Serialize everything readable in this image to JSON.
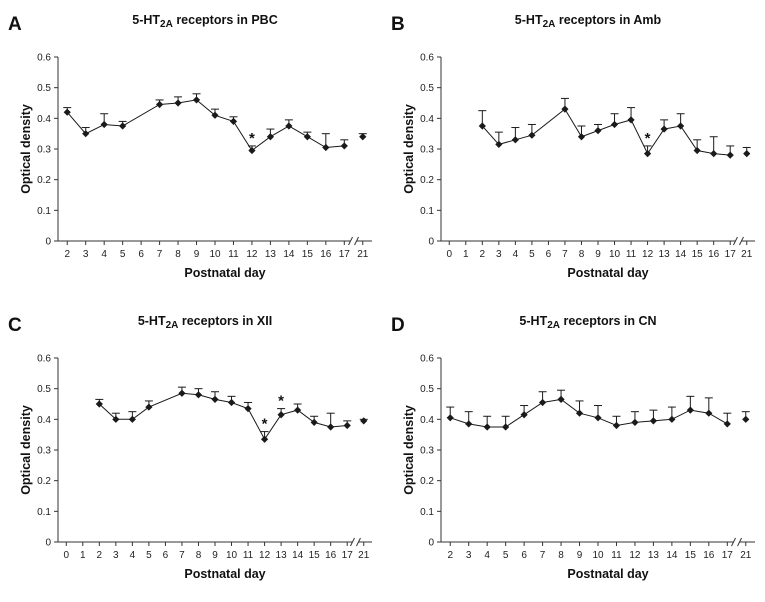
{
  "chart_data": [
    {
      "type": "line",
      "panel_letter": "A",
      "title": "5-HT2A receptors in PBC",
      "title_parts": [
        "5-HT",
        "2A",
        " receptors in PBC"
      ],
      "xlabel": "Postnatal day",
      "ylabel": "Optical density",
      "ylim": [
        0,
        0.6
      ],
      "yticks": [
        "0",
        "0.1",
        "0.2",
        "0.3",
        "0.4",
        "0.5",
        "0.6"
      ],
      "xticks": [
        "2",
        "3",
        "4",
        "5",
        "6",
        "7",
        "8",
        "9",
        "10",
        "11",
        "12",
        "13",
        "14",
        "15",
        "16",
        "17",
        "21"
      ],
      "axis_break_between": [
        17,
        21
      ],
      "x": [
        2,
        3,
        4,
        5,
        7,
        8,
        9,
        10,
        11,
        12,
        13,
        14,
        15,
        16,
        17,
        21
      ],
      "values": [
        0.42,
        0.35,
        0.38,
        0.375,
        0.445,
        0.45,
        0.46,
        0.41,
        0.39,
        0.295,
        0.34,
        0.375,
        0.34,
        0.305,
        0.31,
        0.34
      ],
      "error": [
        0.015,
        0.02,
        0.035,
        0.015,
        0.015,
        0.02,
        0.02,
        0.02,
        0.015,
        0.015,
        0.025,
        0.02,
        0.015,
        0.045,
        0.02,
        0.01
      ],
      "connected_until": 17,
      "significance": [
        {
          "x": 12,
          "label": "*"
        }
      ],
      "grid": false,
      "marker": "diamond",
      "color": "#1a1a1a"
    },
    {
      "type": "line",
      "panel_letter": "B",
      "title": "5-HT2A receptors in Amb",
      "title_parts": [
        "5-HT",
        "2A",
        "  receptors in Amb"
      ],
      "xlabel": "Postnatal day",
      "ylabel": "Optical density",
      "ylim": [
        0,
        0.6
      ],
      "yticks": [
        "0",
        "0.1",
        "0.2",
        "0.3",
        "0.4",
        "0.5",
        "0.6"
      ],
      "xticks": [
        "0",
        "1",
        "2",
        "3",
        "4",
        "5",
        "6",
        "7",
        "8",
        "9",
        "10",
        "11",
        "12",
        "13",
        "14",
        "15",
        "16",
        "17",
        "21"
      ],
      "axis_break_between": [
        17,
        21
      ],
      "x": [
        2,
        3,
        4,
        5,
        7,
        8,
        9,
        10,
        11,
        12,
        13,
        14,
        15,
        16,
        17,
        21
      ],
      "values": [
        0.375,
        0.315,
        0.33,
        0.345,
        0.43,
        0.34,
        0.36,
        0.38,
        0.395,
        0.285,
        0.365,
        0.375,
        0.295,
        0.285,
        0.28,
        0.285
      ],
      "error": [
        0.05,
        0.04,
        0.04,
        0.035,
        0.035,
        0.035,
        0.02,
        0.035,
        0.04,
        0.025,
        0.03,
        0.04,
        0.035,
        0.055,
        0.03,
        0.02
      ],
      "connected_until": 17,
      "significance": [
        {
          "x": 12,
          "label": "*"
        }
      ],
      "grid": false,
      "marker": "diamond",
      "color": "#1a1a1a"
    },
    {
      "type": "line",
      "panel_letter": "C",
      "title": "5-HT2A receptors in XII",
      "title_parts": [
        "5-HT",
        "2A",
        " receptors in XII"
      ],
      "xlabel": "Postnatal day",
      "ylabel": "Optical density",
      "ylim": [
        0,
        0.6
      ],
      "yticks": [
        "0",
        "0.1",
        "0.2",
        "0.3",
        "0.4",
        "0.5",
        "0.6"
      ],
      "xticks": [
        "0",
        "1",
        "2",
        "3",
        "4",
        "5",
        "6",
        "7",
        "8",
        "9",
        "10",
        "11",
        "12",
        "13",
        "14",
        "15",
        "16",
        "17",
        "21"
      ],
      "axis_break_between": [
        17,
        21
      ],
      "x": [
        2,
        3,
        4,
        5,
        7,
        8,
        9,
        10,
        11,
        12,
        13,
        14,
        15,
        16,
        17,
        21
      ],
      "values": [
        0.45,
        0.4,
        0.4,
        0.44,
        0.485,
        0.48,
        0.465,
        0.455,
        0.435,
        0.335,
        0.415,
        0.43,
        0.39,
        0.375,
        0.38,
        0.395
      ],
      "error": [
        0.015,
        0.02,
        0.025,
        0.02,
        0.02,
        0.02,
        0.025,
        0.02,
        0.02,
        0.025,
        0.02,
        0.02,
        0.02,
        0.045,
        0.015,
        0.005
      ],
      "connected_until": 17,
      "significance": [
        {
          "x": 12,
          "label": "*"
        },
        {
          "x": 13,
          "label": "*"
        }
      ],
      "grid": false,
      "marker": "diamond",
      "color": "#1a1a1a"
    },
    {
      "type": "line",
      "panel_letter": "D",
      "title": "5-HT2A receptors in CN",
      "title_parts": [
        "5-HT",
        "2A",
        "  receptors in CN"
      ],
      "xlabel": "Postnatal day",
      "ylabel": "Optical density",
      "ylim": [
        0,
        0.6
      ],
      "yticks": [
        "0",
        "0.1",
        "0.2",
        "0.3",
        "0.4",
        "0.5",
        "0.6"
      ],
      "xticks": [
        "2",
        "3",
        "4",
        "5",
        "6",
        "7",
        "8",
        "9",
        "10",
        "11",
        "12",
        "13",
        "14",
        "15",
        "16",
        "17",
        "21"
      ],
      "axis_break_between": [
        17,
        21
      ],
      "x": [
        2,
        3,
        4,
        5,
        6,
        7,
        8,
        9,
        10,
        11,
        12,
        13,
        14,
        15,
        16,
        17,
        21
      ],
      "values": [
        0.405,
        0.385,
        0.375,
        0.375,
        0.415,
        0.455,
        0.465,
        0.42,
        0.405,
        0.38,
        0.39,
        0.395,
        0.4,
        0.43,
        0.42,
        0.385,
        0.4
      ],
      "error": [
        0.035,
        0.04,
        0.035,
        0.035,
        0.03,
        0.035,
        0.03,
        0.04,
        0.04,
        0.03,
        0.035,
        0.035,
        0.04,
        0.045,
        0.05,
        0.035,
        0.025
      ],
      "connected_until": 17,
      "significance": [],
      "grid": false,
      "marker": "diamond",
      "color": "#1a1a1a"
    }
  ]
}
